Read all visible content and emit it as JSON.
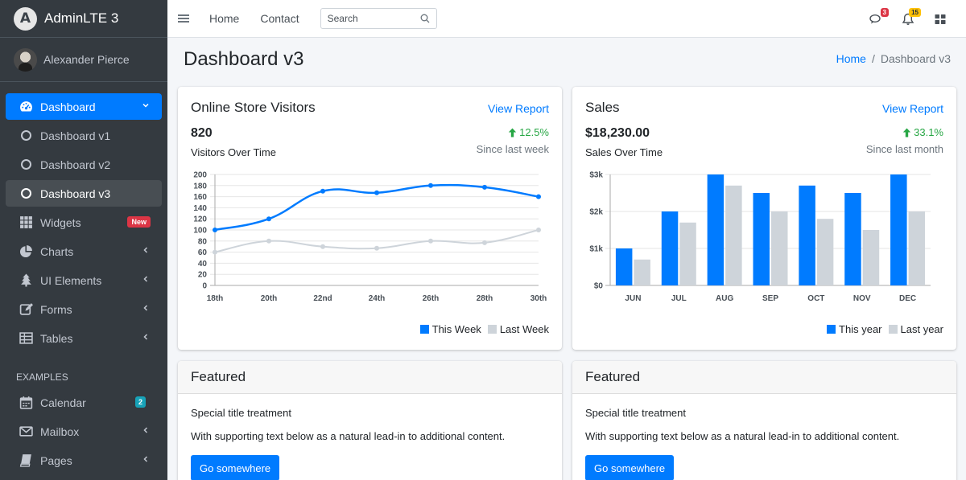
{
  "brand": {
    "name": "AdminLTE 3",
    "logo_letter": "A"
  },
  "user": {
    "name": "Alexander Pierce"
  },
  "sidebar": {
    "items": [
      {
        "label": "Dashboard"
      },
      {
        "label": "Dashboard v1"
      },
      {
        "label": "Dashboard v2"
      },
      {
        "label": "Dashboard v3"
      },
      {
        "label": "Widgets",
        "badge": "New"
      },
      {
        "label": "Charts"
      },
      {
        "label": "UI Elements"
      },
      {
        "label": "Forms"
      },
      {
        "label": "Tables"
      }
    ],
    "section_header": "EXAMPLES",
    "examples": [
      {
        "label": "Calendar",
        "badge": "2"
      },
      {
        "label": "Mailbox"
      },
      {
        "label": "Pages"
      }
    ]
  },
  "topbar": {
    "home": "Home",
    "contact": "Contact",
    "search_placeholder": "Search",
    "messages_count": "3",
    "notifications_count": "15"
  },
  "page": {
    "title": "Dashboard v3",
    "breadcrumb_home": "Home",
    "breadcrumb_sep": "/",
    "breadcrumb_current": "Dashboard v3"
  },
  "visitors_card": {
    "title": "Online Store Visitors",
    "link": "View Report",
    "value": "820",
    "subtitle": "Visitors Over Time",
    "change": "12.5%",
    "since": "Since last week",
    "legend_a": "This Week",
    "legend_b": "Last Week"
  },
  "sales_card": {
    "title": "Sales",
    "link": "View Report",
    "value": "$18,230.00",
    "subtitle": "Sales Over Time",
    "change": "33.1%",
    "since": "Since last month",
    "legend_a": "This year",
    "legend_b": "Last year"
  },
  "featured_cards": [
    {
      "header": "Featured",
      "title": "Special title treatment",
      "text": "With supporting text below as a natural lead-in to additional content.",
      "button": "Go somewhere"
    },
    {
      "header": "Featured",
      "title": "Special title treatment",
      "text": "With supporting text below as a natural lead-in to additional content.",
      "button": "Go somewhere"
    }
  ],
  "colors": {
    "primary": "#007bff",
    "secondary": "#ced4da",
    "success": "#28a745",
    "sidebar": "#343a40"
  },
  "chart_data": [
    {
      "type": "line",
      "categories": [
        "18th",
        "20th",
        "22nd",
        "24th",
        "26th",
        "28th",
        "30th"
      ],
      "series": [
        {
          "name": "This Week",
          "values": [
            100,
            120,
            170,
            167,
            180,
            177,
            160
          ],
          "color": "#007bff"
        },
        {
          "name": "Last Week",
          "values": [
            60,
            80,
            70,
            67,
            80,
            77,
            100
          ],
          "color": "#ced4da"
        }
      ],
      "y_ticks": [
        0,
        20,
        40,
        60,
        80,
        100,
        120,
        140,
        160,
        180,
        200
      ],
      "ylim": [
        0,
        200
      ],
      "grid": true,
      "legend": "bottom-right"
    },
    {
      "type": "bar",
      "categories": [
        "JUN",
        "JUL",
        "AUG",
        "SEP",
        "OCT",
        "NOV",
        "DEC"
      ],
      "series": [
        {
          "name": "This year",
          "values": [
            1000,
            2000,
            3000,
            2500,
            2700,
            2500,
            3000
          ],
          "color": "#007bff"
        },
        {
          "name": "Last year",
          "values": [
            700,
            1700,
            2700,
            2000,
            1800,
            1500,
            2000
          ],
          "color": "#ced4da"
        }
      ],
      "y_ticks": [
        0,
        1000,
        2000,
        3000
      ],
      "y_tick_labels": [
        "$0",
        "$1k",
        "$2k",
        "$3k"
      ],
      "ylim": [
        0,
        3000
      ],
      "grid": true,
      "legend": "bottom-right"
    }
  ]
}
